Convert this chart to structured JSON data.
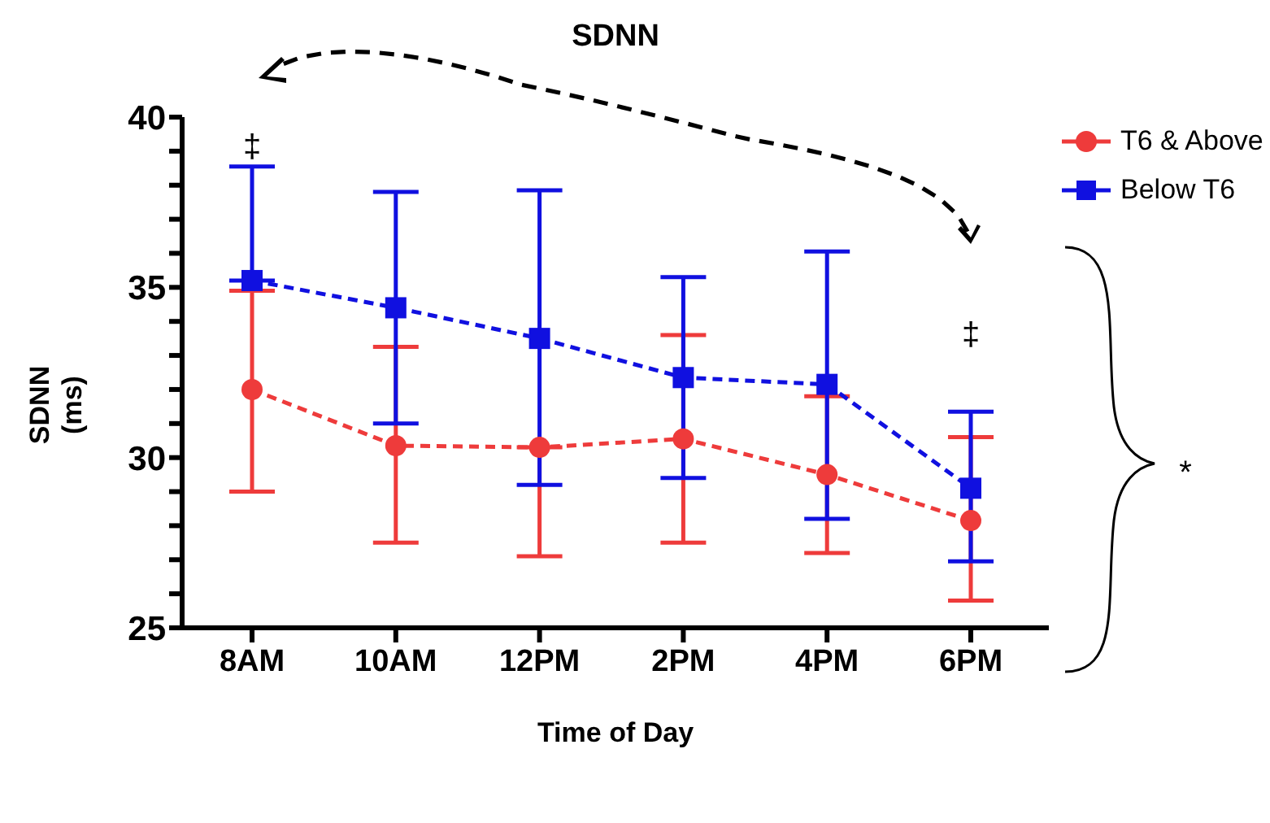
{
  "chart_data": {
    "type": "line",
    "title": "SDNN",
    "xlabel": "Time of Day",
    "ylabel": "SDNN\n(ms)",
    "categories": [
      "8AM",
      "10AM",
      "12PM",
      "2PM",
      "4PM",
      "6PM"
    ],
    "series": [
      {
        "name": "T6 & Above",
        "color": "#ee3b3b",
        "marker": "circle",
        "values": [
          32.0,
          30.35,
          30.3,
          30.55,
          29.5,
          28.15
        ],
        "errors": [
          [
            29.0,
            34.9
          ],
          [
            27.5,
            33.25
          ],
          [
            27.1,
            30.3
          ],
          [
            27.5,
            33.6
          ],
          [
            27.2,
            31.8
          ],
          [
            25.8,
            30.6
          ]
        ]
      },
      {
        "name": "Below T6",
        "color": "#1010e0",
        "marker": "square",
        "values": [
          35.2,
          34.4,
          33.5,
          32.35,
          32.15,
          29.1
        ],
        "errors": [
          [
            35.2,
            38.55
          ],
          [
            31.0,
            37.8
          ],
          [
            29.2,
            37.85
          ],
          [
            29.4,
            35.3
          ],
          [
            28.2,
            36.05
          ],
          [
            26.95,
            31.35
          ]
        ]
      }
    ],
    "ylim": [
      25,
      40
    ],
    "yticks": [
      25,
      {
        "value": 26,
        "label": null
      },
      {
        "value": 27,
        "label": null
      },
      {
        "value": 28,
        "label": null
      },
      {
        "value": 29,
        "label": null
      },
      30,
      {
        "value": 31,
        "label": null
      },
      {
        "value": 32,
        "label": null
      },
      {
        "value": 33,
        "label": null
      },
      {
        "value": 34,
        "label": null
      },
      35,
      {
        "value": 36,
        "label": null
      },
      {
        "value": 37,
        "label": null
      },
      {
        "value": 38,
        "label": null
      },
      {
        "value": 39,
        "label": null
      },
      40
    ],
    "grid": false,
    "legend": "top right",
    "line_style": "dashed",
    "annotations": [
      "‡",
      "‡",
      "*"
    ]
  }
}
